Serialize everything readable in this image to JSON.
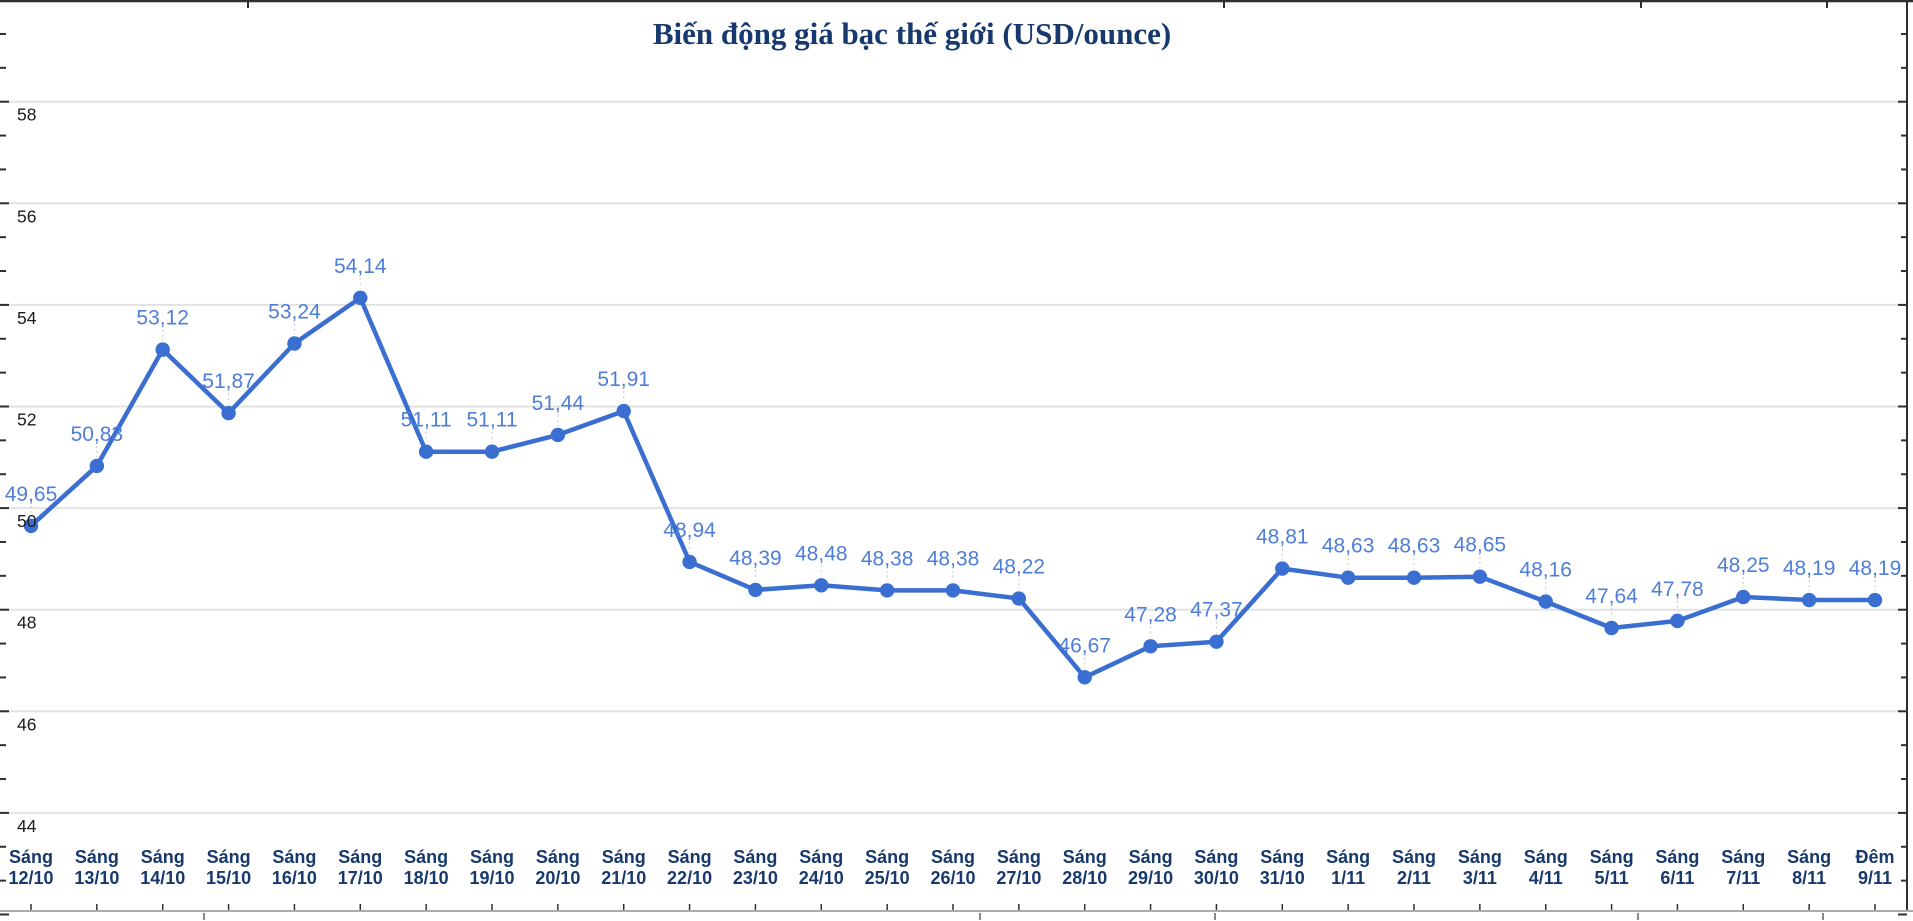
{
  "chart_data": {
    "type": "line",
    "title": "Biến động giá bạc thế giới (USD/ounce)",
    "categories": [
      {
        "period": "Sáng",
        "date": "12/10"
      },
      {
        "period": "Sáng",
        "date": "13/10"
      },
      {
        "period": "Sáng",
        "date": "14/10"
      },
      {
        "period": "Sáng",
        "date": "15/10"
      },
      {
        "period": "Sáng",
        "date": "16/10"
      },
      {
        "period": "Sáng",
        "date": "17/10"
      },
      {
        "period": "Sáng",
        "date": "18/10"
      },
      {
        "period": "Sáng",
        "date": "19/10"
      },
      {
        "period": "Sáng",
        "date": "20/10"
      },
      {
        "period": "Sáng",
        "date": "21/10"
      },
      {
        "period": "Sáng",
        "date": "22/10"
      },
      {
        "period": "Sáng",
        "date": "23/10"
      },
      {
        "period": "Sáng",
        "date": "24/10"
      },
      {
        "period": "Sáng",
        "date": "25/10"
      },
      {
        "period": "Sáng",
        "date": "26/10"
      },
      {
        "period": "Sáng",
        "date": "27/10"
      },
      {
        "period": "Sáng",
        "date": "28/10"
      },
      {
        "period": "Sáng",
        "date": "29/10"
      },
      {
        "period": "Sáng",
        "date": "30/10"
      },
      {
        "period": "Sáng",
        "date": "31/10"
      },
      {
        "period": "Sáng",
        "date": "1/11"
      },
      {
        "period": "Sáng",
        "date": "2/11"
      },
      {
        "period": "Sáng",
        "date": "3/11"
      },
      {
        "period": "Sáng",
        "date": "4/11"
      },
      {
        "period": "Sáng",
        "date": "5/11"
      },
      {
        "period": "Sáng",
        "date": "6/11"
      },
      {
        "period": "Sáng",
        "date": "7/11"
      },
      {
        "period": "Sáng",
        "date": "8/11"
      },
      {
        "period": "Đêm",
        "date": "9/11"
      }
    ],
    "values": [
      49.65,
      50.83,
      53.12,
      51.87,
      53.24,
      54.14,
      51.11,
      51.11,
      51.44,
      51.91,
      48.94,
      48.39,
      48.48,
      48.38,
      48.38,
      48.22,
      46.67,
      47.28,
      47.37,
      48.81,
      48.63,
      48.63,
      48.65,
      48.16,
      47.64,
      47.78,
      48.25,
      48.19,
      48.19
    ],
    "value_labels": [
      "49,65",
      "50,83",
      "53,12",
      "51,87",
      "53,24",
      "54,14",
      "51,11",
      "51,11",
      "51,44",
      "51,91",
      "48,94",
      "48,39",
      "48,48",
      "48,38",
      "48,38",
      "48,22",
      "46,67",
      "47,28",
      "47,37",
      "48,81",
      "48,63",
      "48,63",
      "48,65",
      "48,16",
      "47,64",
      "47,78",
      "48,25",
      "48,19",
      "48,19"
    ],
    "y_ticks": [
      58,
      56,
      54,
      52,
      50,
      48,
      46,
      44
    ],
    "ylim": [
      42,
      60
    ],
    "grid": "horizontal",
    "legend": "none",
    "colors": {
      "line": "#3a6ed0",
      "point": "#3a6ed0",
      "value_label": "#4e7ed8",
      "category_label": "#17396d",
      "title": "#17396d",
      "y_label": "#1b1b1b",
      "gridline": "#e2e2e2",
      "axis": "#2f2f2f",
      "bottom_line": "#ababab",
      "leader": "#cfcfcf"
    }
  }
}
